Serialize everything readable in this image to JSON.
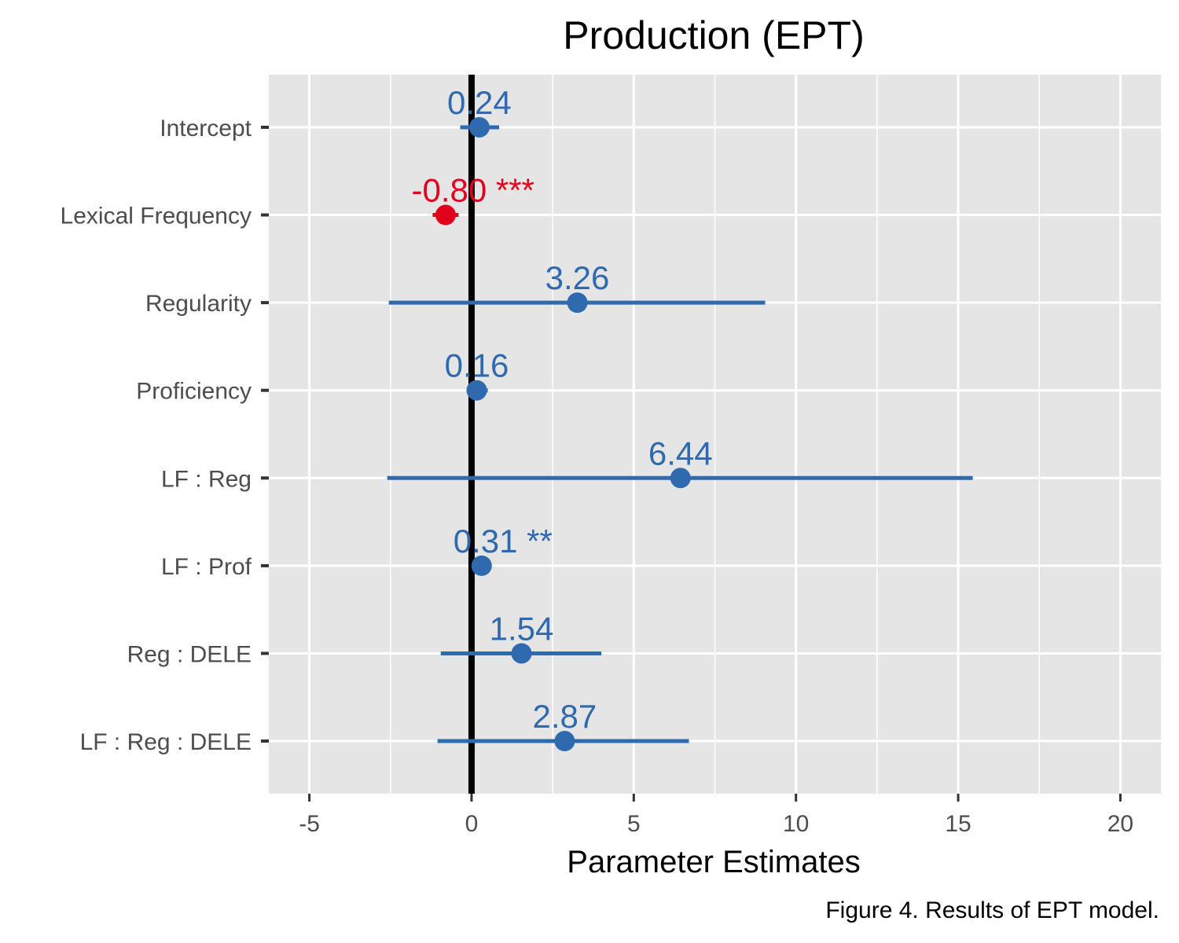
{
  "chart_data": {
    "type": "forest",
    "title": "Production (EPT)",
    "xlabel": "Parameter Estimates",
    "caption": "Figure 4. Results of EPT model.",
    "xlim": [
      -6.25,
      21.25
    ],
    "x_ticks": [
      -5,
      0,
      5,
      10,
      15,
      20
    ],
    "x_tick_labels": [
      "-5",
      "0",
      "5",
      "10",
      "15",
      "20"
    ],
    "reference_line": 0,
    "grid": true,
    "panel_background": "#e5e5e5",
    "colors": {
      "default": "#2e6aad",
      "highlight": "#e0001b"
    },
    "categories": [
      "Intercept",
      "Lexical Frequency",
      "Regularity",
      "Proficiency",
      "LF : Reg",
      "LF : Prof",
      "Reg : DELE",
      "LF : Reg : DELE"
    ],
    "estimates": [
      0.24,
      -0.8,
      3.26,
      0.16,
      6.44,
      0.31,
      1.54,
      2.87
    ],
    "ci_low": [
      -0.35,
      -1.2,
      -2.55,
      -0.15,
      -2.6,
      0.2,
      -0.95,
      -1.05
    ],
    "ci_high": [
      0.85,
      -0.4,
      9.05,
      0.5,
      15.45,
      0.45,
      4.0,
      6.7
    ],
    "labels": [
      "0.24",
      "-0.80 ***",
      "3.26",
      "0.16",
      "6.44",
      "0.31 **",
      "1.54",
      "2.87"
    ],
    "highlight": [
      false,
      true,
      false,
      false,
      false,
      false,
      false,
      false
    ]
  }
}
